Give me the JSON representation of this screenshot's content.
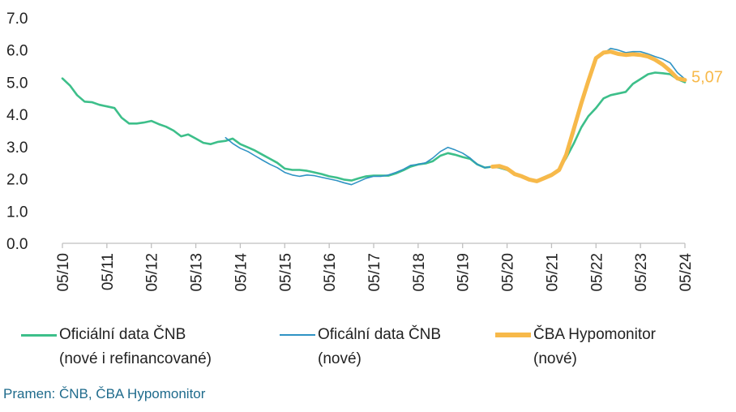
{
  "chart_data": {
    "type": "line",
    "ylim": [
      0,
      7
    ],
    "yticks": [
      "0.0",
      "1.0",
      "2.0",
      "3.0",
      "4.0",
      "5.0",
      "6.0",
      "7.0"
    ],
    "xticks": [
      "05/10",
      "05/11",
      "05/12",
      "05/13",
      "05/14",
      "05/15",
      "05/16",
      "05/17",
      "05/18",
      "05/19",
      "05/20",
      "05/21",
      "05/22",
      "05/23",
      "05/24"
    ],
    "end_label": "5,07",
    "series": [
      {
        "legend_line1": "Oficiální data ČNB",
        "legend_line2": "(nové i refinancované)",
        "color": "#3dbf8a",
        "points": [
          [
            2010.0,
            5.12
          ],
          [
            2010.17,
            4.9
          ],
          [
            2010.33,
            4.6
          ],
          [
            2010.5,
            4.4
          ],
          [
            2010.67,
            4.38
          ],
          [
            2010.83,
            4.3
          ],
          [
            2011.0,
            4.25
          ],
          [
            2011.17,
            4.2
          ],
          [
            2011.33,
            3.9
          ],
          [
            2011.5,
            3.72
          ],
          [
            2011.67,
            3.72
          ],
          [
            2011.83,
            3.75
          ],
          [
            2012.0,
            3.8
          ],
          [
            2012.17,
            3.7
          ],
          [
            2012.33,
            3.62
          ],
          [
            2012.5,
            3.5
          ],
          [
            2012.67,
            3.32
          ],
          [
            2012.83,
            3.38
          ],
          [
            2013.0,
            3.25
          ],
          [
            2013.17,
            3.12
          ],
          [
            2013.33,
            3.08
          ],
          [
            2013.5,
            3.15
          ],
          [
            2013.67,
            3.18
          ],
          [
            2013.83,
            3.25
          ],
          [
            2014.0,
            3.08
          ],
          [
            2014.17,
            2.98
          ],
          [
            2014.33,
            2.88
          ],
          [
            2014.5,
            2.75
          ],
          [
            2014.67,
            2.62
          ],
          [
            2014.83,
            2.5
          ],
          [
            2015.0,
            2.32
          ],
          [
            2015.17,
            2.28
          ],
          [
            2015.33,
            2.28
          ],
          [
            2015.5,
            2.25
          ],
          [
            2015.67,
            2.2
          ],
          [
            2015.83,
            2.15
          ],
          [
            2016.0,
            2.08
          ],
          [
            2016.17,
            2.04
          ],
          [
            2016.33,
            1.98
          ],
          [
            2016.5,
            1.95
          ],
          [
            2016.67,
            2.02
          ],
          [
            2016.83,
            2.08
          ],
          [
            2017.0,
            2.1
          ],
          [
            2017.17,
            2.1
          ],
          [
            2017.33,
            2.1
          ],
          [
            2017.5,
            2.17
          ],
          [
            2017.67,
            2.27
          ],
          [
            2017.83,
            2.38
          ],
          [
            2018.0,
            2.45
          ],
          [
            2018.17,
            2.48
          ],
          [
            2018.33,
            2.55
          ],
          [
            2018.5,
            2.72
          ],
          [
            2018.67,
            2.8
          ],
          [
            2018.83,
            2.75
          ],
          [
            2019.0,
            2.68
          ],
          [
            2019.17,
            2.62
          ],
          [
            2019.33,
            2.45
          ],
          [
            2019.5,
            2.35
          ],
          [
            2019.67,
            2.38
          ],
          [
            2019.83,
            2.35
          ],
          [
            2020.0,
            2.28
          ],
          [
            2020.17,
            2.15
          ],
          [
            2020.33,
            2.05
          ],
          [
            2020.5,
            1.97
          ],
          [
            2020.67,
            1.95
          ],
          [
            2020.83,
            2.05
          ],
          [
            2021.0,
            2.15
          ],
          [
            2021.17,
            2.3
          ],
          [
            2021.33,
            2.65
          ],
          [
            2021.5,
            3.1
          ],
          [
            2021.67,
            3.6
          ],
          [
            2021.83,
            3.95
          ],
          [
            2022.0,
            4.2
          ],
          [
            2022.17,
            4.5
          ],
          [
            2022.33,
            4.6
          ],
          [
            2022.5,
            4.65
          ],
          [
            2022.67,
            4.7
          ],
          [
            2022.83,
            4.95
          ],
          [
            2023.0,
            5.1
          ],
          [
            2023.17,
            5.25
          ],
          [
            2023.33,
            5.3
          ],
          [
            2023.5,
            5.28
          ],
          [
            2023.67,
            5.25
          ],
          [
            2023.83,
            5.1
          ],
          [
            2024.0,
            5.0
          ]
        ]
      },
      {
        "legend_line1": "Oficální data ČNB",
        "legend_line2": "(nové)",
        "color": "#2f93c4",
        "points": [
          [
            2013.67,
            3.28
          ],
          [
            2013.83,
            3.1
          ],
          [
            2014.0,
            2.95
          ],
          [
            2014.17,
            2.85
          ],
          [
            2014.33,
            2.72
          ],
          [
            2014.5,
            2.58
          ],
          [
            2014.67,
            2.45
          ],
          [
            2014.83,
            2.35
          ],
          [
            2015.0,
            2.2
          ],
          [
            2015.17,
            2.12
          ],
          [
            2015.33,
            2.08
          ],
          [
            2015.5,
            2.12
          ],
          [
            2015.67,
            2.1
          ],
          [
            2015.83,
            2.05
          ],
          [
            2016.0,
            2.0
          ],
          [
            2016.17,
            1.95
          ],
          [
            2016.33,
            1.88
          ],
          [
            2016.5,
            1.82
          ],
          [
            2016.67,
            1.92
          ],
          [
            2016.83,
            2.02
          ],
          [
            2017.0,
            2.08
          ],
          [
            2017.17,
            2.08
          ],
          [
            2017.33,
            2.12
          ],
          [
            2017.5,
            2.2
          ],
          [
            2017.67,
            2.3
          ],
          [
            2017.83,
            2.42
          ],
          [
            2018.0,
            2.45
          ],
          [
            2018.17,
            2.5
          ],
          [
            2018.33,
            2.65
          ],
          [
            2018.5,
            2.85
          ],
          [
            2018.67,
            2.98
          ],
          [
            2018.83,
            2.9
          ],
          [
            2019.0,
            2.8
          ],
          [
            2019.17,
            2.65
          ],
          [
            2019.33,
            2.45
          ],
          [
            2019.5,
            2.35
          ],
          [
            2019.67,
            2.38
          ],
          [
            2019.83,
            2.35
          ],
          [
            2020.0,
            2.28
          ],
          [
            2020.17,
            2.15
          ],
          [
            2020.33,
            2.05
          ],
          [
            2020.5,
            1.97
          ],
          [
            2020.67,
            1.95
          ],
          [
            2020.83,
            2.05
          ],
          [
            2021.0,
            2.15
          ],
          [
            2021.17,
            2.3
          ],
          [
            2021.33,
            2.7
          ],
          [
            2021.5,
            3.4
          ],
          [
            2021.67,
            4.3
          ],
          [
            2021.83,
            5.0
          ],
          [
            2022.0,
            5.7
          ],
          [
            2022.17,
            5.9
          ],
          [
            2022.33,
            6.05
          ],
          [
            2022.5,
            6.0
          ],
          [
            2022.67,
            5.92
          ],
          [
            2022.83,
            5.95
          ],
          [
            2023.0,
            5.95
          ],
          [
            2023.17,
            5.88
          ],
          [
            2023.33,
            5.8
          ],
          [
            2023.5,
            5.72
          ],
          [
            2023.67,
            5.6
          ],
          [
            2023.83,
            5.3
          ],
          [
            2024.0,
            5.1
          ]
        ]
      },
      {
        "legend_line1": "ČBA Hypomonitor",
        "legend_line2": "(nové)",
        "color": "#f7b94a",
        "points": [
          [
            2019.67,
            2.38
          ],
          [
            2019.83,
            2.4
          ],
          [
            2020.0,
            2.32
          ],
          [
            2020.17,
            2.15
          ],
          [
            2020.33,
            2.08
          ],
          [
            2020.5,
            1.98
          ],
          [
            2020.67,
            1.93
          ],
          [
            2020.83,
            2.02
          ],
          [
            2021.0,
            2.12
          ],
          [
            2021.17,
            2.28
          ],
          [
            2021.33,
            2.75
          ],
          [
            2021.5,
            3.55
          ],
          [
            2021.67,
            4.35
          ],
          [
            2021.83,
            5.05
          ],
          [
            2022.0,
            5.75
          ],
          [
            2022.17,
            5.92
          ],
          [
            2022.33,
            5.95
          ],
          [
            2022.5,
            5.88
          ],
          [
            2022.67,
            5.85
          ],
          [
            2022.83,
            5.87
          ],
          [
            2023.0,
            5.85
          ],
          [
            2023.17,
            5.8
          ],
          [
            2023.33,
            5.7
          ],
          [
            2023.5,
            5.55
          ],
          [
            2023.67,
            5.35
          ],
          [
            2023.83,
            5.12
          ],
          [
            2024.0,
            5.07
          ]
        ]
      }
    ]
  },
  "source": "Pramen: ČNB, ČBA Hypomonitor"
}
